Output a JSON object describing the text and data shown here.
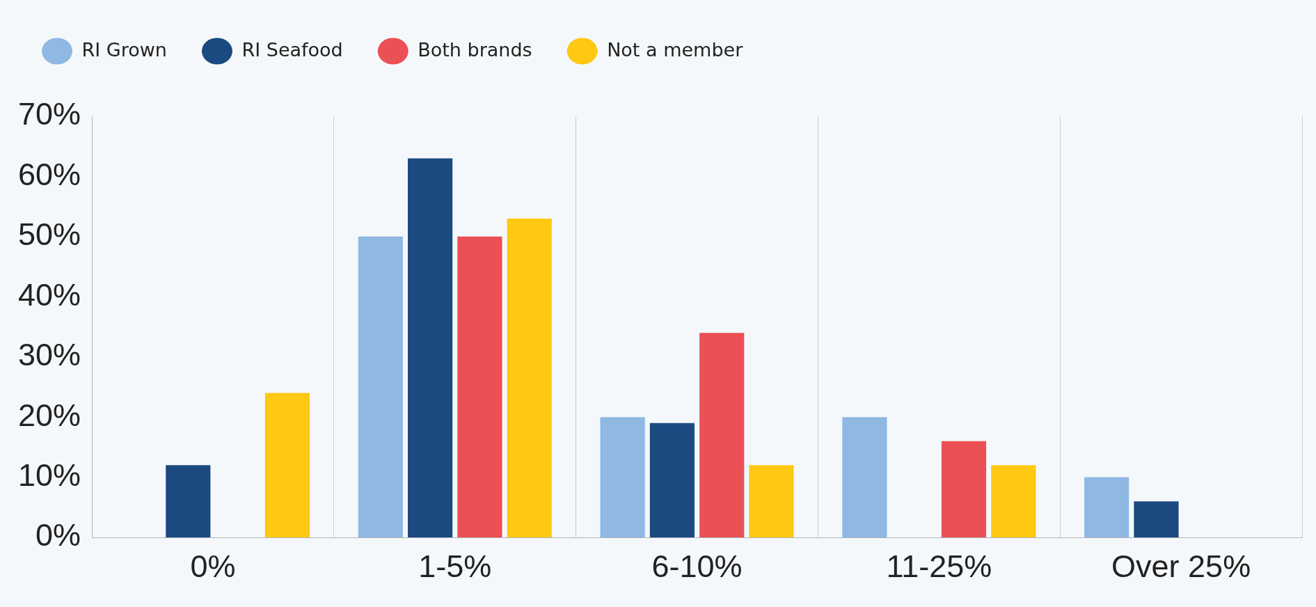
{
  "chart_data": {
    "type": "bar",
    "categories": [
      "0%",
      "1-5%",
      "6-10%",
      "11-25%",
      "Over 25%"
    ],
    "series": [
      {
        "name": "RI Grown",
        "color": "#8fb8e2",
        "values": [
          0,
          50,
          20,
          20,
          10
        ]
      },
      {
        "name": "RI Seafood",
        "color": "#1a4a80",
        "values": [
          12,
          63,
          19,
          0,
          6
        ]
      },
      {
        "name": "Both brands",
        "color": "#eb5055",
        "values": [
          0,
          50,
          34,
          16,
          0
        ]
      },
      {
        "name": "Not a member",
        "color": "#fec813",
        "values": [
          24,
          53,
          12,
          12,
          0
        ]
      }
    ],
    "ylim": [
      0,
      70
    ],
    "yticks": [
      {
        "value": 0,
        "label": "0%"
      },
      {
        "value": 10,
        "label": "10%"
      },
      {
        "value": 20,
        "label": "20%"
      },
      {
        "value": 30,
        "label": "30%"
      },
      {
        "value": 40,
        "label": "40%"
      },
      {
        "value": 50,
        "label": "50%"
      },
      {
        "value": 60,
        "label": "60%"
      },
      {
        "value": 70,
        "label": "70%"
      }
    ],
    "grid": "x",
    "legend": "top left"
  }
}
